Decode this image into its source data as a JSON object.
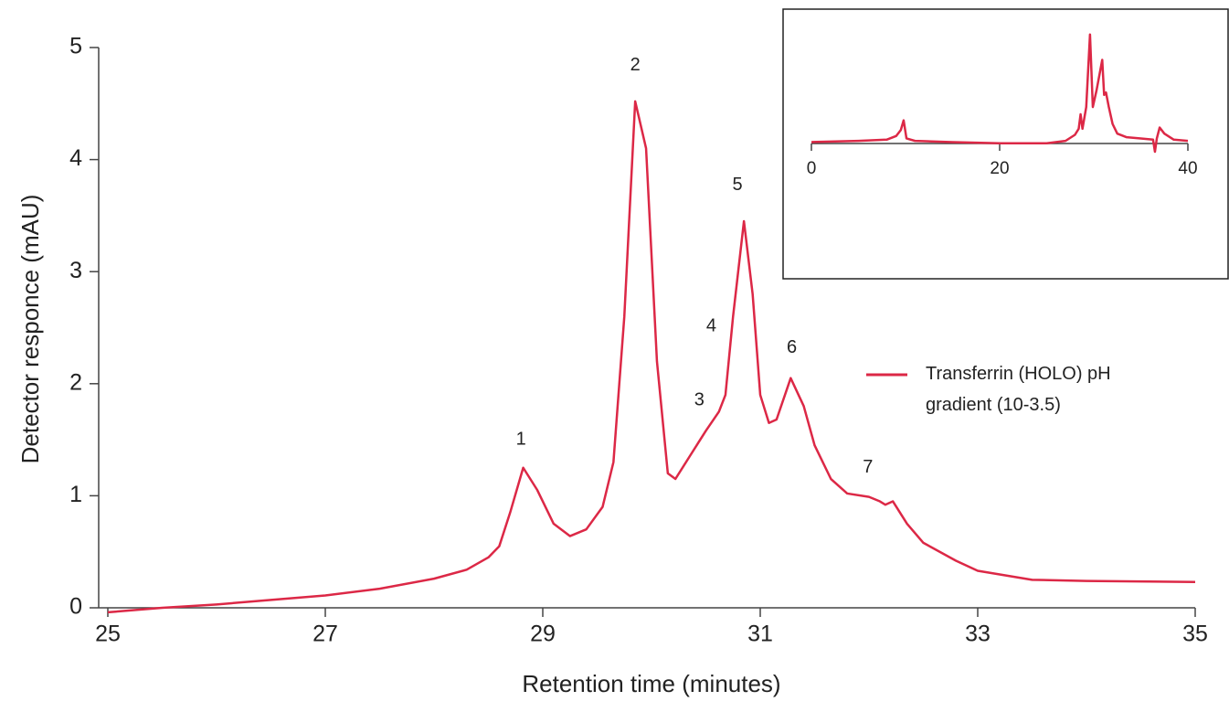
{
  "chart_data": [
    {
      "type": "line",
      "xlabel": "Retention time (minutes)",
      "ylabel": "Detector responce (mAU)",
      "x": [
        25.0,
        25.5,
        26.0,
        26.5,
        27.0,
        27.5,
        28.0,
        28.3,
        28.5,
        28.6,
        28.7,
        28.82,
        28.95,
        29.1,
        29.25,
        29.4,
        29.55,
        29.65,
        29.75,
        29.85,
        29.95,
        30.05,
        30.15,
        30.22,
        30.35,
        30.5,
        30.62,
        30.68,
        30.75,
        30.85,
        30.93,
        31.0,
        31.08,
        31.15,
        31.28,
        31.4,
        31.5,
        31.65,
        31.8,
        32.0,
        32.1,
        32.15,
        32.22,
        32.35,
        32.5,
        32.8,
        33.0,
        33.5,
        34.0,
        35.0
      ],
      "series": [
        {
          "name": "Transferrin (HOLO) pH gradient (10-3.5)",
          "color": "#dc2846",
          "values": [
            -0.04,
            0,
            0.03,
            0.07,
            0.11,
            0.17,
            0.26,
            0.34,
            0.45,
            0.55,
            0.85,
            1.25,
            1.05,
            0.75,
            0.64,
            0.7,
            0.9,
            1.3,
            2.6,
            4.52,
            4.1,
            2.2,
            1.2,
            1.15,
            1.35,
            1.58,
            1.75,
            1.9,
            2.6,
            3.45,
            2.8,
            1.9,
            1.65,
            1.68,
            2.05,
            1.8,
            1.45,
            1.15,
            1.02,
            0.99,
            0.95,
            0.92,
            0.95,
            0.75,
            0.58,
            0.42,
            0.33,
            0.25,
            0.24,
            0.23
          ]
        }
      ],
      "xlim": [
        25,
        35
      ],
      "xticks": [
        25,
        27,
        29,
        31,
        33,
        35
      ],
      "ylim": [
        0,
        5
      ],
      "yticks": [
        0,
        1,
        2,
        3,
        4,
        5
      ],
      "annotations": [
        {
          "text": "1",
          "x": 28.8,
          "y": 1.5
        },
        {
          "text": "2",
          "x": 29.85,
          "y": 4.84
        },
        {
          "text": "3",
          "x": 30.44,
          "y": 1.85
        },
        {
          "text": "4",
          "x": 30.55,
          "y": 2.51
        },
        {
          "text": "5",
          "x": 30.79,
          "y": 3.77
        },
        {
          "text": "6",
          "x": 31.29,
          "y": 2.32
        },
        {
          "text": "7",
          "x": 31.99,
          "y": 1.25
        }
      ]
    },
    {
      "type": "line",
      "x": [
        0,
        5,
        8,
        9,
        9.5,
        9.8,
        10.1,
        11,
        15,
        20,
        25,
        27,
        28,
        28.4,
        28.6,
        28.8,
        29.2,
        29.6,
        29.9,
        30.3,
        30.9,
        31.1,
        31.3,
        31.6,
        32,
        32.5,
        33.5,
        35,
        36.3,
        36.5,
        36.7,
        37,
        37.5,
        38.5,
        40
      ],
      "series": [
        {
          "color": "#dc2846",
          "values": [
            0.05,
            0.1,
            0.15,
            0.3,
            0.55,
            0.95,
            0.2,
            0.1,
            0.05,
            0,
            0,
            0.1,
            0.35,
            0.6,
            1.2,
            0.6,
            1.5,
            4.5,
            1.5,
            2.2,
            3.45,
            2.0,
            2.1,
            1.5,
            0.8,
            0.4,
            0.25,
            0.2,
            0.15,
            -0.35,
            0.2,
            0.65,
            0.4,
            0.15,
            0.1
          ]
        }
      ],
      "xlim": [
        0,
        40
      ],
      "xticks": [
        0,
        20,
        40
      ],
      "ylim": [
        -0.5,
        5
      ]
    }
  ]
}
